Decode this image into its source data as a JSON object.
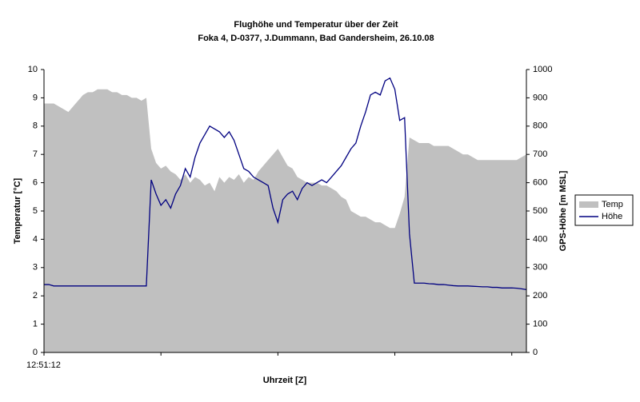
{
  "chart_data": {
    "type": "area-line",
    "title": "Flughöhe und Temperatur über der Zeit",
    "subtitle": "Foka 4, D-0377, J.Dummann, Bad Gandersheim, 26.10.08",
    "xlabel": "Uhrzeit [Z]",
    "ylabel": "Temperatur [°C]",
    "y2label": "GPS-Höhe [m MSL]",
    "categories": [
      "12:51:12",
      null,
      null,
      null,
      null,
      null,
      null,
      null,
      null,
      null,
      null,
      null,
      null,
      null,
      null,
      null,
      null,
      null,
      null,
      null,
      null,
      null,
      null,
      null,
      null,
      null,
      null,
      null,
      null,
      null,
      null,
      null,
      null,
      null,
      null,
      null,
      null,
      null,
      null,
      null,
      null,
      null,
      null,
      null,
      null,
      null,
      null,
      null,
      null,
      null,
      null,
      null,
      null,
      null,
      null,
      null,
      null,
      null,
      null,
      null,
      null,
      null,
      null,
      null,
      null,
      null,
      null,
      null,
      null,
      null,
      null,
      null,
      null,
      null,
      null,
      null,
      null,
      null,
      null,
      null,
      null,
      null,
      null,
      null,
      null,
      null,
      null,
      null,
      null,
      null,
      null,
      null,
      null,
      null,
      null,
      null,
      null,
      null,
      null,
      null
    ],
    "series": [
      {
        "name": "Temp",
        "color": "#c0c0c0",
        "axis": "y",
        "values": [
          8.8,
          8.8,
          8.8,
          8.7,
          8.6,
          8.5,
          8.7,
          8.9,
          9.1,
          9.2,
          9.2,
          9.3,
          9.3,
          9.3,
          9.2,
          9.2,
          9.1,
          9.1,
          9.0,
          9.0,
          8.9,
          9.0,
          7.2,
          6.7,
          6.5,
          6.6,
          6.4,
          6.3,
          6.1,
          6.3,
          6.0,
          6.2,
          6.1,
          5.9,
          6.0,
          5.7,
          6.2,
          6.0,
          6.2,
          6.1,
          6.3,
          6.0,
          6.2,
          6.1,
          6.4,
          6.6,
          6.8,
          7.0,
          7.2,
          6.9,
          6.6,
          6.5,
          6.2,
          6.1,
          6.0,
          6.0,
          6.0,
          5.9,
          5.9,
          5.8,
          5.7,
          5.5,
          5.4,
          5.0,
          4.9,
          4.8,
          4.8,
          4.7,
          4.6,
          4.6,
          4.5,
          4.4,
          4.4,
          4.9,
          5.5,
          7.6,
          7.5,
          7.4,
          7.4,
          7.4,
          7.3,
          7.3,
          7.3,
          7.3,
          7.2,
          7.1,
          7.0,
          7.0,
          6.9,
          6.8,
          6.8,
          6.8,
          6.8,
          6.8,
          6.8,
          6.8,
          6.8,
          6.8,
          6.9,
          7.0
        ]
      },
      {
        "name": "Höhe",
        "color": "#000080",
        "axis": "y2",
        "values": [
          240,
          240,
          235,
          235,
          235,
          235,
          235,
          235,
          235,
          235,
          235,
          235,
          235,
          235,
          235,
          235,
          235,
          235,
          235,
          235,
          235,
          235,
          610,
          560,
          520,
          540,
          510,
          560,
          590,
          650,
          620,
          690,
          740,
          770,
          800,
          790,
          780,
          760,
          780,
          750,
          700,
          650,
          640,
          620,
          610,
          600,
          590,
          510,
          460,
          540,
          560,
          570,
          540,
          580,
          600,
          590,
          600,
          610,
          600,
          620,
          640,
          660,
          690,
          720,
          740,
          800,
          850,
          910,
          920,
          910,
          960,
          970,
          930,
          820,
          830,
          420,
          245,
          245,
          245,
          243,
          242,
          240,
          240,
          238,
          236,
          235,
          235,
          235,
          234,
          233,
          232,
          232,
          230,
          230,
          228,
          228,
          228,
          227,
          225,
          222
        ]
      }
    ],
    "ylim": [
      0,
      10
    ],
    "yticks": [
      0,
      1,
      2,
      3,
      4,
      5,
      6,
      7,
      8,
      9,
      10
    ],
    "y2lim": [
      0,
      1000
    ],
    "y2ticks": [
      0,
      100,
      200,
      300,
      400,
      500,
      600,
      700,
      800,
      900,
      1000
    ],
    "legend": "right",
    "grid": false
  }
}
